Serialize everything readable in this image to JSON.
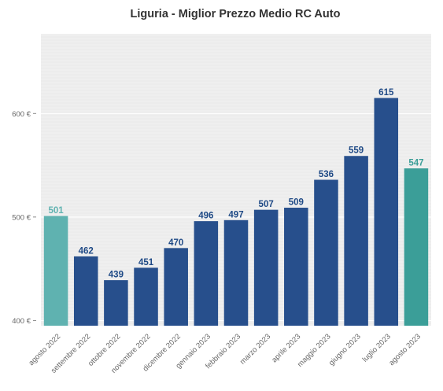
{
  "chart_data": {
    "type": "bar",
    "title": "Liguria - Miglior Prezzo Medio RC Auto",
    "xlabel": "",
    "ylabel": "",
    "ylim": [
      395,
      677
    ],
    "yticks": [
      400,
      500,
      600
    ],
    "ytick_labels": [
      "400 €",
      "500 €",
      "600 €"
    ],
    "categories": [
      "agosto 2022",
      "settembre 2022",
      "ottobre 2022",
      "novembre 2022",
      "dicembre 2022",
      "gennaio 2023",
      "febbraio 2023",
      "marzo 2023",
      "aprile 2023",
      "maggio 2023",
      "giugno 2023",
      "luglio 2023",
      "agosto 2023"
    ],
    "values": [
      501,
      462,
      439,
      451,
      470,
      496,
      497,
      507,
      509,
      536,
      559,
      615,
      547
    ],
    "grid": true,
    "legend": "none",
    "colors": {
      "default_bar": "#274f8c",
      "first_bar": "#5fb2b0",
      "last_bar": "#3b9e98",
      "default_label": "#1f4a86",
      "first_label": "#5fb2b0",
      "last_label": "#3b9e98",
      "plot_background": "#efefef",
      "gridline": "#ffffff"
    }
  }
}
